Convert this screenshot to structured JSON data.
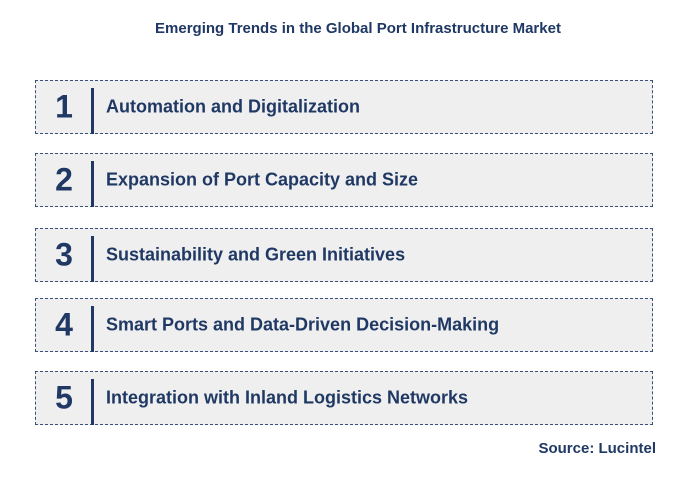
{
  "title": "Emerging Trends in the Global Port Infrastructure Market",
  "trends": [
    {
      "number": "1",
      "label": "Automation and Digitalization"
    },
    {
      "number": "2",
      "label": "Expansion of Port Capacity and Size"
    },
    {
      "number": "3",
      "label": "Sustainability and Green Initiatives"
    },
    {
      "number": "4",
      "label": "Smart Ports and Data-Driven Decision-Making"
    },
    {
      "number": "5",
      "label": "Integration with Inland Logistics Networks"
    }
  ],
  "source": "Source: Lucintel",
  "colors": {
    "text": "#1f3864",
    "box_background": "#efefef",
    "box_border": "#3a4f7a"
  }
}
